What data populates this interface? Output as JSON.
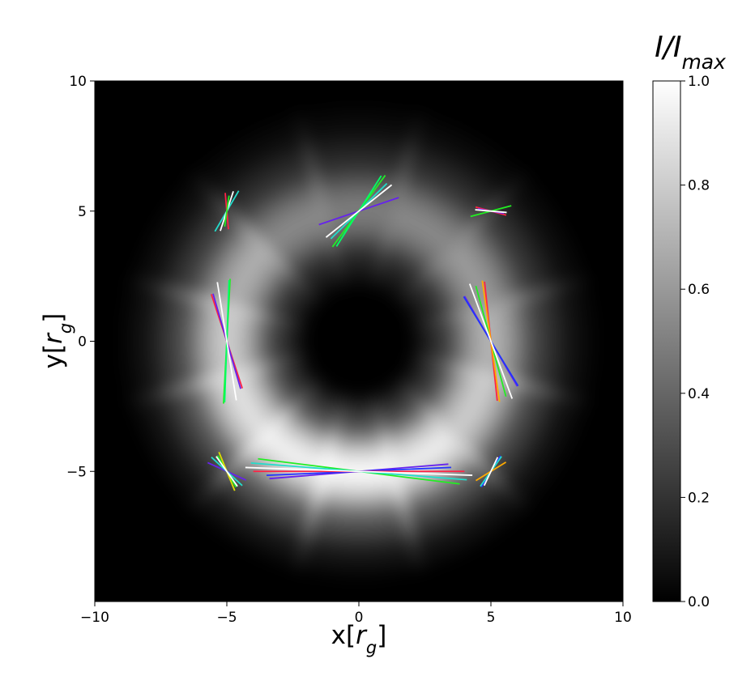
{
  "chart_data": {
    "type": "polarimetric-image",
    "xlabel": [
      "x[",
      "r",
      "g",
      "]"
    ],
    "ylabel": [
      "y[",
      "r",
      "g",
      "]"
    ],
    "xlim": [
      -10,
      10
    ],
    "ylim": [
      -10,
      10
    ],
    "xticks": [
      {
        "value": -10,
        "label": "−10"
      },
      {
        "value": -5,
        "label": "−5"
      },
      0,
      5,
      10
    ],
    "yticks": [
      {
        "value": -5,
        "label": "−5"
      },
      0,
      5,
      10
    ],
    "colormap": "gray",
    "colorbar": {
      "title": [
        "I/I",
        "max"
      ],
      "lim": [
        0,
        1
      ],
      "ticks": [
        {
          "value": 0,
          "label": "0.0"
        },
        {
          "value": 0.2,
          "label": "0.2"
        },
        {
          "value": 0.4,
          "label": "0.4"
        },
        {
          "value": 0.6,
          "label": "0.6"
        },
        {
          "value": 0.8,
          "label": "0.8"
        },
        {
          "value": 1,
          "label": "1.0"
        }
      ]
    },
    "ring": {
      "radius": 5,
      "width": 1.4,
      "angles": [
        0,
        30,
        60,
        90,
        120,
        150,
        180,
        210,
        240,
        270,
        300,
        330
      ],
      "intensity": [
        0.72,
        0.62,
        0.55,
        0.5,
        0.55,
        0.7,
        0.82,
        0.9,
        0.97,
        1.0,
        0.95,
        0.82
      ]
    },
    "polarization": [
      {
        "x": -5,
        "y": 5,
        "segments": [
          {
            "color": "#ff2244",
            "angle": 95,
            "length": 0.7
          },
          {
            "color": "#22ddcc",
            "angle": 60,
            "length": 0.9
          },
          {
            "color": "#ffffff",
            "angle": 72,
            "length": 0.8
          },
          {
            "color": "#22ee22",
            "angle": 82,
            "length": 0.6
          }
        ]
      },
      {
        "x": 0,
        "y": 5,
        "segments": [
          {
            "color": "#6622ee",
            "angle": 19,
            "length": 1.6
          },
          {
            "color": "#22ddcc",
            "angle": 45,
            "length": 1.5
          },
          {
            "color": "#22ee22",
            "angle": 54,
            "length": 1.7
          },
          {
            "color": "#00ff66",
            "angle": 58,
            "length": 1.6
          },
          {
            "color": "#ffffff",
            "angle": 39,
            "length": 1.6
          }
        ]
      },
      {
        "x": 5,
        "y": 5,
        "segments": [
          {
            "color": "#ff2244",
            "angle": -15,
            "length": 0.6
          },
          {
            "color": "#6622ee",
            "angle": -10,
            "length": 0.5
          },
          {
            "color": "#22ee22",
            "angle": 15,
            "length": 0.8
          },
          {
            "color": "#ffffff",
            "angle": -5,
            "length": 0.6
          }
        ]
      },
      {
        "x": -5,
        "y": 0,
        "segments": [
          {
            "color": "#ff2244",
            "angle": 108,
            "length": 1.9
          },
          {
            "color": "#6622ee",
            "angle": 106,
            "length": 1.9
          },
          {
            "color": "#22ee22",
            "angle": 87,
            "length": 2.4
          },
          {
            "color": "#00ff66",
            "angle": 88,
            "length": 2.35
          },
          {
            "color": "#ffffff",
            "angle": 99,
            "length": 2.3
          }
        ]
      },
      {
        "x": 5,
        "y": 0,
        "segments": [
          {
            "color": "#6622ee",
            "angle": 120,
            "length": 2.0
          },
          {
            "color": "#2233ff",
            "angle": 121,
            "length": 2.0
          },
          {
            "color": "#22ee22",
            "angle": 105,
            "length": 2.2
          },
          {
            "color": "#ff2244",
            "angle": 96,
            "length": 2.3
          },
          {
            "color": "#ffaa00",
            "angle": 98,
            "length": 2.35
          },
          {
            "color": "#ffffff",
            "angle": 110,
            "length": 2.35
          }
        ]
      },
      {
        "x": -5,
        "y": -5,
        "segments": [
          {
            "color": "#6622ee",
            "angle": 155,
            "length": 0.8
          },
          {
            "color": "#22ee22",
            "angle": 120,
            "length": 0.7
          },
          {
            "color": "#dddd00",
            "angle": 112,
            "length": 0.8
          },
          {
            "color": "#22ddcc",
            "angle": 137,
            "length": 0.8
          },
          {
            "color": "#ffffff",
            "angle": 125,
            "length": 0.7
          }
        ]
      },
      {
        "x": 0,
        "y": -5,
        "segments": [
          {
            "color": "#6622ee",
            "angle": 4.7,
            "length": 3.4
          },
          {
            "color": "#2233ff",
            "angle": 2.5,
            "length": 3.5
          },
          {
            "color": "#ff2244",
            "angle": 0,
            "length": 4.0
          },
          {
            "color": "#22ee22",
            "angle": -7.2,
            "length": 3.85
          },
          {
            "color": "#22ddcc",
            "angle": -4.5,
            "length": 4.1
          },
          {
            "color": "#ffffff",
            "angle": -2,
            "length": 4.3
          }
        ]
      },
      {
        "x": 5,
        "y": -5,
        "segments": [
          {
            "color": "#ff2244",
            "angle": 60,
            "length": 0.6
          },
          {
            "color": "#2233ff",
            "angle": 59,
            "length": 0.7
          },
          {
            "color": "#22ddcc",
            "angle": 55,
            "length": 0.7
          },
          {
            "color": "#ffaa00",
            "angle": 32,
            "length": 0.67
          },
          {
            "color": "#ffffff",
            "angle": 65,
            "length": 0.6
          }
        ]
      }
    ]
  }
}
